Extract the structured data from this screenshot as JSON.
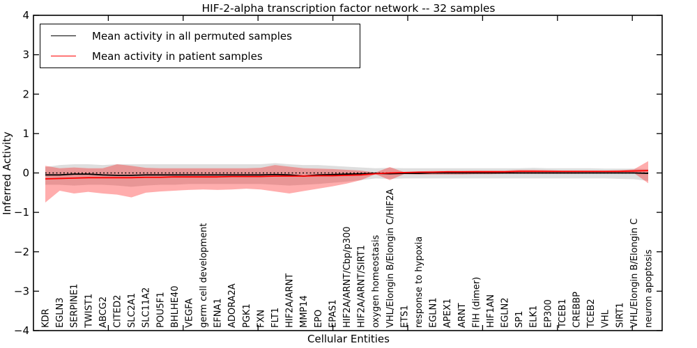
{
  "figure": {
    "title": "HIF-2-alpha transcription factor network -- 32 samples",
    "xlabel": "Cellular Entities",
    "ylabel": "Inferred Activity"
  },
  "legend": {
    "items": [
      {
        "label": "Mean activity in all permuted samples",
        "color": "#000000"
      },
      {
        "label": "Mean activity in patient samples",
        "color": "#ff0000"
      }
    ]
  },
  "chart_data": {
    "type": "line",
    "title": "HIF-2-alpha transcription factor network -- 32 samples",
    "xlabel": "Cellular Entities",
    "ylabel": "Inferred Activity",
    "ylim": [
      -4,
      4
    ],
    "yticks": [
      4,
      3,
      2,
      1,
      0,
      -1,
      -2,
      -3,
      -4
    ],
    "grid": false,
    "legend_position": "upper left",
    "categories": [
      "KDR",
      "EGLN3",
      "SERPINE1",
      "TWIST1",
      "ABCG2",
      "CITED2",
      "SLC2A1",
      "SLC11A2",
      "POU5F1",
      "BHLHE40",
      "VEGFA",
      "germ cell development",
      "EFNA1",
      "ADORA2A",
      "PGK1",
      "FXN",
      "FLT1",
      "HIF2A/ARNT",
      "MMP14",
      "EPO",
      "EPAS1",
      "HIF2A/ARNT/Cbp/p300",
      "HIF2A/ARNT/SIRT1",
      "oxygen homeostasis",
      "VHL/Elongin B/Elongin C/HIF2A",
      "ETS1",
      "response to hypoxia",
      "EGLN1",
      "APEX1",
      "ARNT",
      "FIH (dimer)",
      "HIF1AN",
      "EGLN2",
      "SP1",
      "ELK1",
      "EP300",
      "TCEB1",
      "CREBBP",
      "TCEB2",
      "VHL",
      "SIRT1",
      "VHL/Elongin B/Elongin C",
      "neuron apoptosis"
    ],
    "series": [
      {
        "name": "Mean activity in all permuted samples",
        "color": "#000000",
        "line_style": "solid",
        "values": [
          -0.05,
          -0.05,
          -0.03,
          -0.03,
          -0.05,
          -0.06,
          -0.06,
          -0.05,
          -0.05,
          -0.05,
          -0.05,
          -0.05,
          -0.05,
          -0.05,
          -0.05,
          -0.05,
          -0.04,
          -0.05,
          -0.08,
          -0.05,
          -0.04,
          -0.03,
          -0.02,
          -0.01,
          -0.02,
          -0.01,
          -0.01,
          0.0,
          0.0,
          0.0,
          0.0,
          0.0,
          0.0,
          0.0,
          0.0,
          0.0,
          0.0,
          0.0,
          0.0,
          0.0,
          0.0,
          0.0,
          -0.01
        ]
      },
      {
        "name": "Mean activity in patient samples",
        "color": "#ff0000",
        "line_style": "solid",
        "values": [
          -0.15,
          -0.14,
          -0.13,
          -0.12,
          -0.12,
          -0.12,
          -0.12,
          -0.11,
          -0.11,
          -0.1,
          -0.1,
          -0.1,
          -0.1,
          -0.09,
          -0.09,
          -0.09,
          -0.08,
          -0.08,
          -0.08,
          -0.07,
          -0.07,
          -0.06,
          -0.05,
          -0.02,
          0.0,
          0.01,
          0.02,
          0.02,
          0.03,
          0.03,
          0.03,
          0.03,
          0.03,
          0.04,
          0.04,
          0.04,
          0.04,
          0.04,
          0.04,
          0.04,
          0.04,
          0.05,
          0.06
        ]
      }
    ],
    "reference_line": {
      "value": 0,
      "style": "dotted",
      "color": "#000000"
    },
    "bands": [
      {
        "name": "permuted-samples-range",
        "fill": "rgba(0,0,0,0.13)",
        "upper": [
          0.15,
          0.2,
          0.22,
          0.22,
          0.2,
          0.22,
          0.22,
          0.22,
          0.22,
          0.22,
          0.22,
          0.22,
          0.22,
          0.22,
          0.22,
          0.22,
          0.25,
          0.22,
          0.2,
          0.2,
          0.18,
          0.16,
          0.14,
          0.12,
          0.13,
          0.12,
          0.12,
          0.12,
          0.12,
          0.12,
          0.12,
          0.12,
          0.12,
          0.12,
          0.13,
          0.12,
          0.12,
          0.12,
          0.12,
          0.11,
          0.11,
          0.11,
          0.1
        ],
        "lower": [
          -0.3,
          -0.3,
          -0.32,
          -0.3,
          -0.3,
          -0.32,
          -0.35,
          -0.32,
          -0.3,
          -0.3,
          -0.28,
          -0.28,
          -0.28,
          -0.28,
          -0.28,
          -0.28,
          -0.3,
          -0.32,
          -0.3,
          -0.28,
          -0.25,
          -0.22,
          -0.18,
          -0.14,
          -0.15,
          -0.14,
          -0.14,
          -0.14,
          -0.14,
          -0.14,
          -0.14,
          -0.14,
          -0.14,
          -0.14,
          -0.14,
          -0.14,
          -0.14,
          -0.14,
          -0.14,
          -0.14,
          -0.15,
          -0.16,
          -0.2
        ]
      },
      {
        "name": "patient-samples-range",
        "fill": "rgba(255,0,0,0.32)",
        "upper": [
          0.18,
          0.12,
          0.14,
          0.12,
          0.12,
          0.22,
          0.18,
          0.13,
          0.12,
          0.12,
          0.12,
          0.12,
          0.12,
          0.12,
          0.12,
          0.13,
          0.2,
          0.16,
          0.12,
          0.11,
          0.1,
          0.08,
          0.06,
          0.01,
          0.15,
          0.02,
          0.04,
          0.05,
          0.05,
          0.05,
          0.06,
          0.06,
          0.06,
          0.08,
          0.08,
          0.07,
          0.06,
          0.06,
          0.06,
          0.06,
          0.07,
          0.09,
          0.3
        ],
        "lower": [
          -0.75,
          -0.45,
          -0.52,
          -0.48,
          -0.52,
          -0.55,
          -0.62,
          -0.5,
          -0.47,
          -0.45,
          -0.43,
          -0.42,
          -0.43,
          -0.42,
          -0.4,
          -0.42,
          -0.47,
          -0.52,
          -0.46,
          -0.4,
          -0.34,
          -0.27,
          -0.18,
          -0.03,
          -0.18,
          -0.03,
          -0.04,
          -0.04,
          -0.04,
          -0.04,
          -0.03,
          -0.03,
          -0.02,
          -0.02,
          -0.02,
          -0.02,
          -0.02,
          -0.02,
          -0.01,
          -0.01,
          0.0,
          0.0,
          -0.26
        ]
      }
    ]
  }
}
